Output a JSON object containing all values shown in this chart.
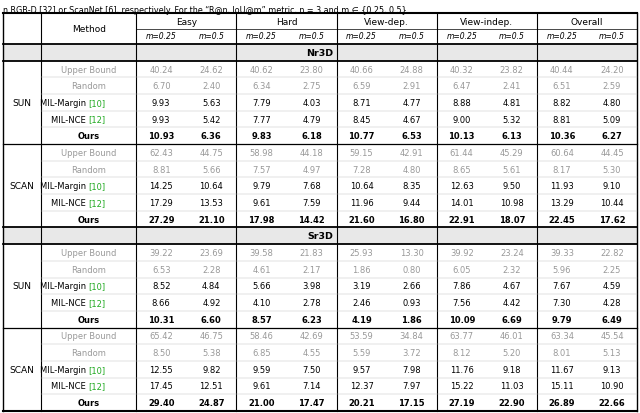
{
  "header_text": "n RGB-D [32] or ScanNet [6], respectively. For the “R@n, IoU@m” metric, n = 3 and m ∈ {0.25, 0.5}.",
  "sections": [
    {
      "name": "Nr3D",
      "subsections": [
        {
          "label": "SUN",
          "rows": [
            {
              "method": "Upper Bound",
              "bold": false,
              "gray": true,
              "values": [
                40.24,
                24.62,
                40.62,
                23.8,
                40.66,
                24.88,
                40.32,
                23.82,
                40.44,
                24.2
              ]
            },
            {
              "method": "Random",
              "bold": false,
              "gray": true,
              "values": [
                6.7,
                2.4,
                6.34,
                2.75,
                6.59,
                2.91,
                6.47,
                2.41,
                6.51,
                2.59
              ]
            },
            {
              "method": "MIL-Margin [10]",
              "bold": false,
              "gray": false,
              "values": [
                9.93,
                5.63,
                7.79,
                4.03,
                8.71,
                4.77,
                8.88,
                4.81,
                8.82,
                4.8
              ]
            },
            {
              "method": "MIL-NCE [12]",
              "bold": false,
              "gray": false,
              "values": [
                9.93,
                5.42,
                7.77,
                4.79,
                8.45,
                4.67,
                9.0,
                5.32,
                8.81,
                5.09
              ]
            },
            {
              "method": "Ours",
              "bold": true,
              "gray": false,
              "values": [
                10.93,
                6.36,
                9.83,
                6.18,
                10.77,
                6.53,
                10.13,
                6.13,
                10.36,
                6.27
              ]
            }
          ]
        },
        {
          "label": "SCAN",
          "rows": [
            {
              "method": "Upper Bound",
              "bold": false,
              "gray": true,
              "values": [
                62.43,
                44.75,
                58.98,
                44.18,
                59.15,
                42.91,
                61.44,
                45.29,
                60.64,
                44.45
              ]
            },
            {
              "method": "Random",
              "bold": false,
              "gray": true,
              "values": [
                8.81,
                5.66,
                7.57,
                4.97,
                7.28,
                4.8,
                8.65,
                5.61,
                8.17,
                5.3
              ]
            },
            {
              "method": "MIL-Margin [10]",
              "bold": false,
              "gray": false,
              "values": [
                14.25,
                10.64,
                9.79,
                7.68,
                10.64,
                8.35,
                12.63,
                9.5,
                11.93,
                9.1
              ]
            },
            {
              "method": "MIL-NCE [12]",
              "bold": false,
              "gray": false,
              "values": [
                17.29,
                13.53,
                9.61,
                7.59,
                11.96,
                9.44,
                14.01,
                10.98,
                13.29,
                10.44
              ]
            },
            {
              "method": "Ours",
              "bold": true,
              "gray": false,
              "values": [
                27.29,
                21.1,
                17.98,
                14.42,
                21.6,
                16.8,
                22.91,
                18.07,
                22.45,
                17.62
              ]
            }
          ]
        }
      ]
    },
    {
      "name": "Sr3D",
      "subsections": [
        {
          "label": "SUN",
          "rows": [
            {
              "method": "Upper Bound",
              "bold": false,
              "gray": true,
              "values": [
                39.22,
                23.69,
                39.58,
                21.83,
                25.93,
                13.3,
                39.92,
                23.24,
                39.33,
                22.82
              ]
            },
            {
              "method": "Random",
              "bold": false,
              "gray": true,
              "values": [
                6.53,
                2.28,
                4.61,
                2.17,
                1.86,
                0.8,
                6.05,
                2.32,
                5.96,
                2.25
              ]
            },
            {
              "method": "MIL-Margin [10]",
              "bold": false,
              "gray": false,
              "values": [
                8.52,
                4.84,
                5.66,
                3.98,
                3.19,
                2.66,
                7.86,
                4.67,
                7.67,
                4.59
              ]
            },
            {
              "method": "MIL-NCE [12]",
              "bold": false,
              "gray": false,
              "values": [
                8.66,
                4.92,
                4.1,
                2.78,
                2.46,
                0.93,
                7.56,
                4.42,
                7.3,
                4.28
              ]
            },
            {
              "method": "Ours",
              "bold": true,
              "gray": false,
              "values": [
                10.31,
                6.6,
                8.57,
                6.23,
                4.19,
                1.86,
                10.09,
                6.69,
                9.79,
                6.49
              ]
            }
          ]
        },
        {
          "label": "SCAN",
          "rows": [
            {
              "method": "Upper Bound",
              "bold": false,
              "gray": true,
              "values": [
                65.42,
                46.75,
                58.46,
                42.69,
                53.59,
                34.84,
                63.77,
                46.01,
                63.34,
                45.54
              ]
            },
            {
              "method": "Random",
              "bold": false,
              "gray": true,
              "values": [
                8.5,
                5.38,
                6.85,
                4.55,
                5.59,
                3.72,
                8.12,
                5.2,
                8.01,
                5.13
              ]
            },
            {
              "method": "MIL-Margin [10]",
              "bold": false,
              "gray": false,
              "values": [
                12.55,
                9.82,
                9.59,
                7.5,
                9.57,
                7.98,
                11.76,
                9.18,
                11.67,
                9.13
              ]
            },
            {
              "method": "MIL-NCE [12]",
              "bold": false,
              "gray": false,
              "values": [
                17.45,
                12.51,
                9.61,
                7.14,
                12.37,
                7.97,
                15.22,
                11.03,
                15.11,
                10.9
              ]
            },
            {
              "method": "Ours",
              "bold": true,
              "gray": false,
              "values": [
                29.4,
                24.87,
                21.0,
                17.47,
                20.21,
                17.15,
                27.19,
                22.9,
                26.89,
                22.66
              ]
            }
          ]
        }
      ]
    }
  ],
  "gray_color": "#999999",
  "green_color": "#22AA22",
  "black_color": "#000000",
  "section_bg": "#E8E8E8"
}
